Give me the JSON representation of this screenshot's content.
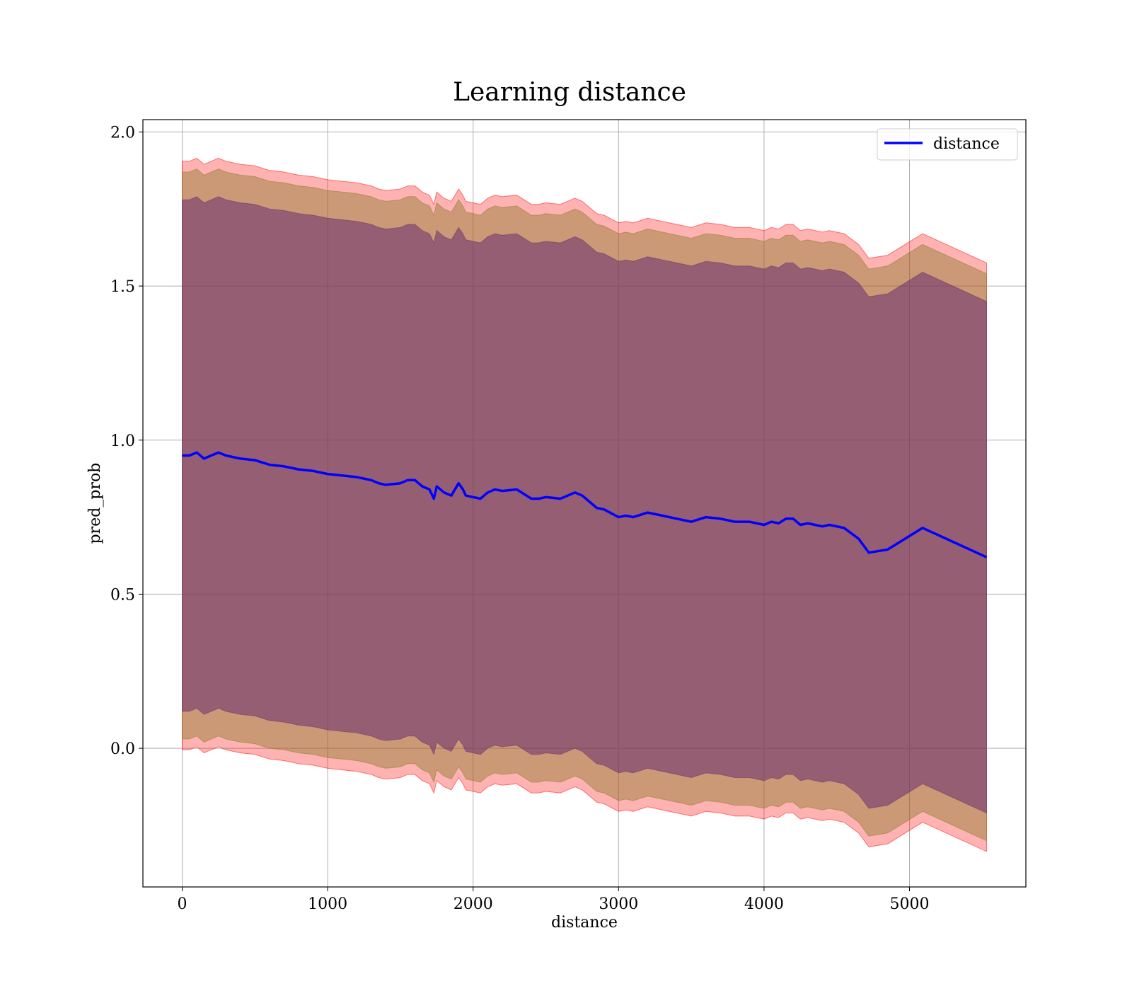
{
  "chart_data": {
    "type": "line",
    "title": "Learning distance",
    "xlabel": "distance",
    "ylabel": "pred_prob",
    "xlim": [
      -270,
      5800
    ],
    "ylim": [
      -0.45,
      2.04
    ],
    "xticks": [
      0,
      1000,
      2000,
      3000,
      4000,
      5000
    ],
    "yticks": [
      0.0,
      0.5,
      1.0,
      1.5,
      2.0
    ],
    "xtick_labels": [
      "0",
      "1000",
      "2000",
      "3000",
      "4000",
      "5000"
    ],
    "ytick_labels": [
      "0.0",
      "0.5",
      "1.0",
      "1.5",
      "2.0"
    ],
    "grid": true,
    "legend": {
      "placement": "top-right",
      "entries": [
        "distance"
      ]
    },
    "colors": {
      "line": "#0000ff",
      "band_outer": "#ff0000",
      "band_middle": "#8b7b2a",
      "band_inner": "#6a2e70"
    },
    "series": [
      {
        "name": "distance",
        "x": [
          0,
          50,
          100,
          150,
          200,
          250,
          300,
          400,
          500,
          600,
          700,
          800,
          900,
          1000,
          1100,
          1200,
          1300,
          1350,
          1400,
          1500,
          1550,
          1600,
          1650,
          1700,
          1730,
          1750,
          1800,
          1850,
          1900,
          1930,
          1950,
          2000,
          2050,
          2100,
          2150,
          2200,
          2300,
          2400,
          2450,
          2500,
          2600,
          2700,
          2750,
          2800,
          2850,
          2900,
          3000,
          3050,
          3100,
          3200,
          3300,
          3400,
          3500,
          3600,
          3700,
          3800,
          3900,
          4000,
          4050,
          4100,
          4150,
          4200,
          4250,
          4300,
          4400,
          4450,
          4550,
          4650,
          4720,
          4850,
          5090,
          5530
        ],
        "y": [
          0.95,
          0.95,
          0.96,
          0.94,
          0.95,
          0.96,
          0.95,
          0.94,
          0.935,
          0.92,
          0.915,
          0.905,
          0.9,
          0.89,
          0.885,
          0.88,
          0.87,
          0.86,
          0.855,
          0.86,
          0.87,
          0.87,
          0.85,
          0.84,
          0.81,
          0.85,
          0.83,
          0.82,
          0.86,
          0.84,
          0.82,
          0.815,
          0.81,
          0.83,
          0.84,
          0.835,
          0.84,
          0.81,
          0.81,
          0.815,
          0.81,
          0.83,
          0.82,
          0.8,
          0.78,
          0.775,
          0.75,
          0.755,
          0.75,
          0.765,
          0.755,
          0.745,
          0.735,
          0.75,
          0.745,
          0.735,
          0.735,
          0.725,
          0.735,
          0.73,
          0.745,
          0.745,
          0.725,
          0.73,
          0.72,
          0.725,
          0.715,
          0.68,
          0.635,
          0.645,
          0.715,
          0.62
        ]
      }
    ],
    "bands": [
      {
        "level": "outer",
        "upper_offset": 0.955,
        "lower_offset": 0.955
      },
      {
        "level": "middle",
        "upper_offset": 0.92,
        "lower_offset": 0.92
      },
      {
        "level": "inner",
        "upper_offset": 0.83,
        "lower_offset": 0.83
      }
    ]
  }
}
